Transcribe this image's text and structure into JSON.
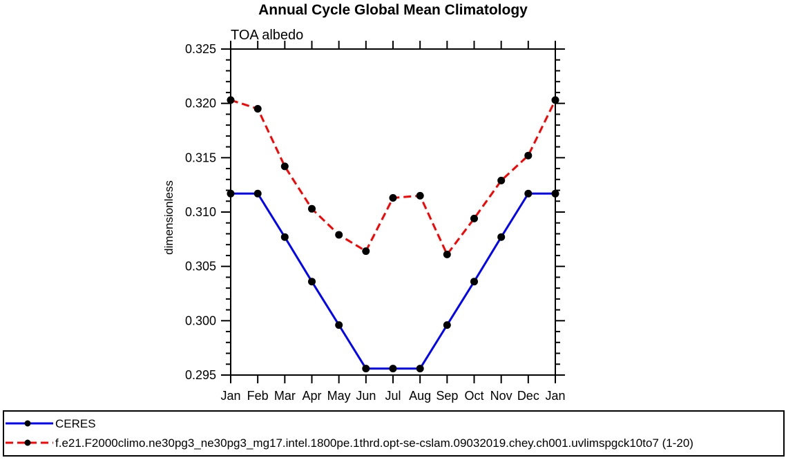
{
  "chart_data": {
    "type": "line",
    "title": "Annual Cycle Global Mean Climatology",
    "subtitle": "TOA albedo",
    "ylabel": "dimensionless",
    "x_categories": [
      "Jan",
      "Feb",
      "Mar",
      "Apr",
      "May",
      "Jun",
      "Jul",
      "Aug",
      "Sep",
      "Oct",
      "Nov",
      "Dec",
      "Jan"
    ],
    "ylim": [
      0.295,
      0.325
    ],
    "ytick_major_step": 0.005,
    "ytick_minor_step": 0.001,
    "ytick_decimals": 3,
    "grid": false,
    "legend_position": "bottom-box",
    "marker": "filled-circle",
    "marker_color": "#000000",
    "series": [
      {
        "name": "CERES",
        "color": "#0000ff",
        "line_style": "solid",
        "values": [
          0.3117,
          0.3117,
          0.3077,
          0.3036,
          0.2996,
          0.2956,
          0.2956,
          0.2956,
          0.2996,
          0.3036,
          0.3077,
          0.3117,
          0.3117
        ]
      },
      {
        "name": "f.e21.F2000climo.ne30pg3_ne30pg3_mg17.intel.1800pe.1thrd.opt-se-cslam.09032019.chey.ch001.uvlimspgck10to7 (1-20)",
        "color": "#ff0000",
        "line_style": "dashed",
        "values": [
          0.3203,
          0.3195,
          0.3142,
          0.3103,
          0.3079,
          0.3064,
          0.3113,
          0.3115,
          0.3061,
          0.3094,
          0.3129,
          0.3152,
          0.3203
        ]
      }
    ]
  }
}
